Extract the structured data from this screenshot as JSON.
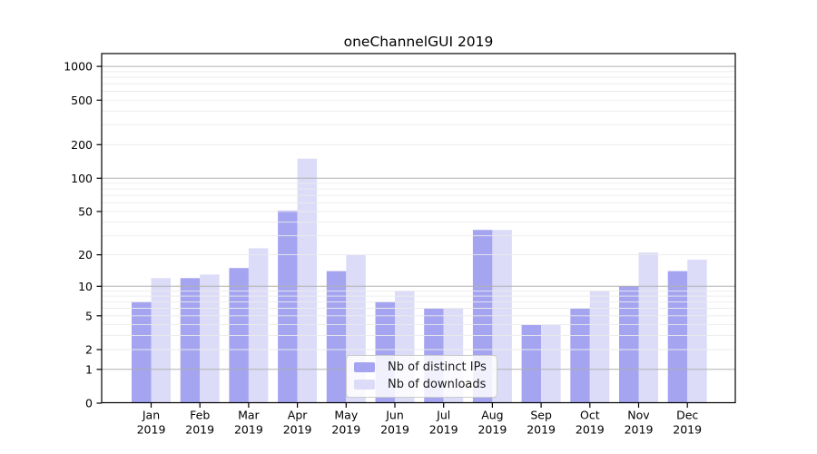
{
  "chart_data": {
    "type": "bar",
    "title": "oneChannelGUI 2019",
    "months": [
      "Jan",
      "Feb",
      "Mar",
      "Apr",
      "May",
      "Jun",
      "Jul",
      "Aug",
      "Sep",
      "Oct",
      "Nov",
      "Dec"
    ],
    "year": "2019",
    "series": [
      {
        "name": "Nb of distinct IPs",
        "color": "#a4a4f1",
        "values": [
          7,
          12,
          15,
          51,
          14,
          7,
          6,
          34,
          4,
          6,
          10,
          14
        ]
      },
      {
        "name": "Nb of downloads",
        "color": "#dcdcf8",
        "values": [
          12,
          13,
          23,
          150,
          20,
          9,
          6,
          34,
          4,
          9,
          21,
          18
        ]
      }
    ],
    "xlabel": "",
    "ylabel": "",
    "y_scale": "log10(1+x)",
    "y_ticks": [
      0,
      1,
      2,
      5,
      10,
      20,
      50,
      100,
      200,
      500,
      1000
    ],
    "major_gridlines": [
      1,
      10,
      100,
      1000
    ],
    "ylim": [
      0,
      1300
    ],
    "grid": "both",
    "legend_position": "inside-lower-center"
  },
  "colors": {
    "background": "#ffffff",
    "axis": "#000000",
    "text": "#000000",
    "grid_major": "#b0b0b0",
    "grid_minor": "#ebebeb"
  }
}
